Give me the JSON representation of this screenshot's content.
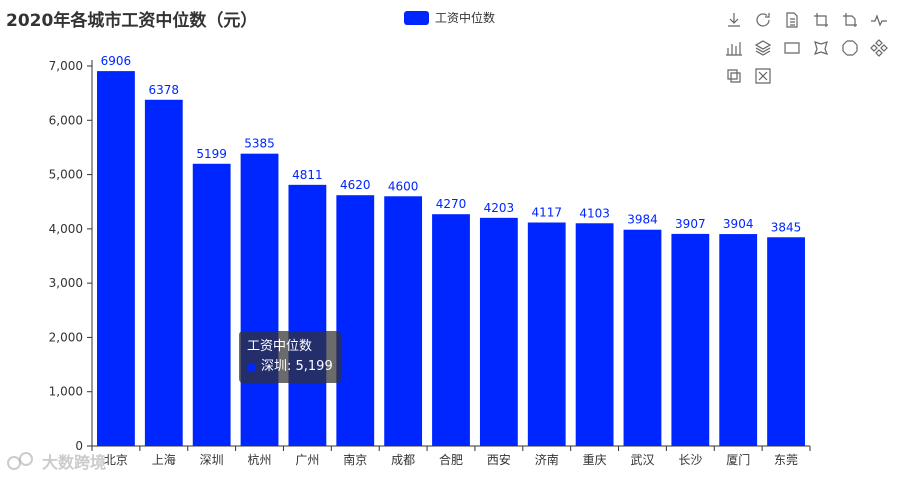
{
  "colors": {
    "bar": "#0026ff",
    "label": "#0026ff",
    "axis": "#333333",
    "grid": "#e0e0e0"
  },
  "legend": {
    "label": "工资中位数"
  },
  "tooltip": {
    "series": "工资中位数",
    "text": "深圳: 5,199"
  },
  "watermark": {
    "text": "大数跨境"
  },
  "toolbox": {
    "icons": [
      "download-icon",
      "refresh-icon",
      "data-view-icon",
      "zoom-icon",
      "zoom-reset-icon",
      "line-chart-icon",
      "bar-chart-icon",
      "stack-icon",
      "rect-select-icon",
      "lasso-select-icon",
      "keep-select-icon",
      "clear-select-icon",
      "brush-icon",
      "clear-brush-icon"
    ]
  },
  "chart_data": {
    "type": "bar",
    "title": "2020年各城市工资中位数（元）",
    "xlabel": "",
    "ylabel": "",
    "categories": [
      "北京",
      "上海",
      "深圳",
      "杭州",
      "广州",
      "南京",
      "成都",
      "合肥",
      "西安",
      "济南",
      "重庆",
      "武汉",
      "长沙",
      "厦门",
      "东莞"
    ],
    "series": [
      {
        "name": "工资中位数",
        "values": [
          6906,
          6378,
          5199,
          5385,
          4811,
          4620,
          4600,
          4270,
          4203,
          4117,
          4103,
          3984,
          3907,
          3904,
          3845
        ]
      }
    ],
    "ylim": [
      0,
      7000
    ],
    "yticks": [
      0,
      1000,
      2000,
      3000,
      4000,
      5000,
      6000,
      7000
    ],
    "ytick_labels": [
      "0",
      "1,000",
      "2,000",
      "3,000",
      "4,000",
      "5,000",
      "6,000",
      "7,000"
    ],
    "grid": false,
    "legend_position": "top-center"
  }
}
